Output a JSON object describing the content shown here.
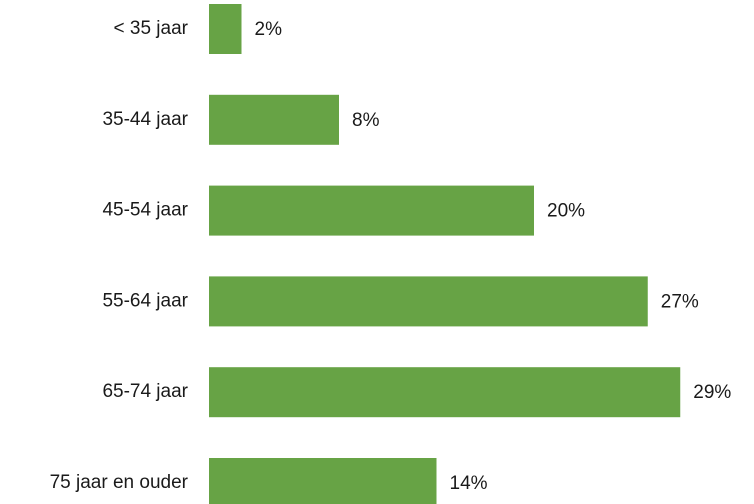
{
  "chart_data": {
    "type": "barh",
    "categories": [
      "< 35 jaar",
      "35-44 jaar",
      "45-54 jaar",
      "55-64 jaar",
      "65-74 jaar",
      "75 jaar en ouder"
    ],
    "values": [
      2,
      8,
      20,
      27,
      29,
      14
    ],
    "value_labels": [
      "2%",
      "8%",
      "20%",
      "27%",
      "29%",
      "14%"
    ],
    "color": "#67a345"
  }
}
